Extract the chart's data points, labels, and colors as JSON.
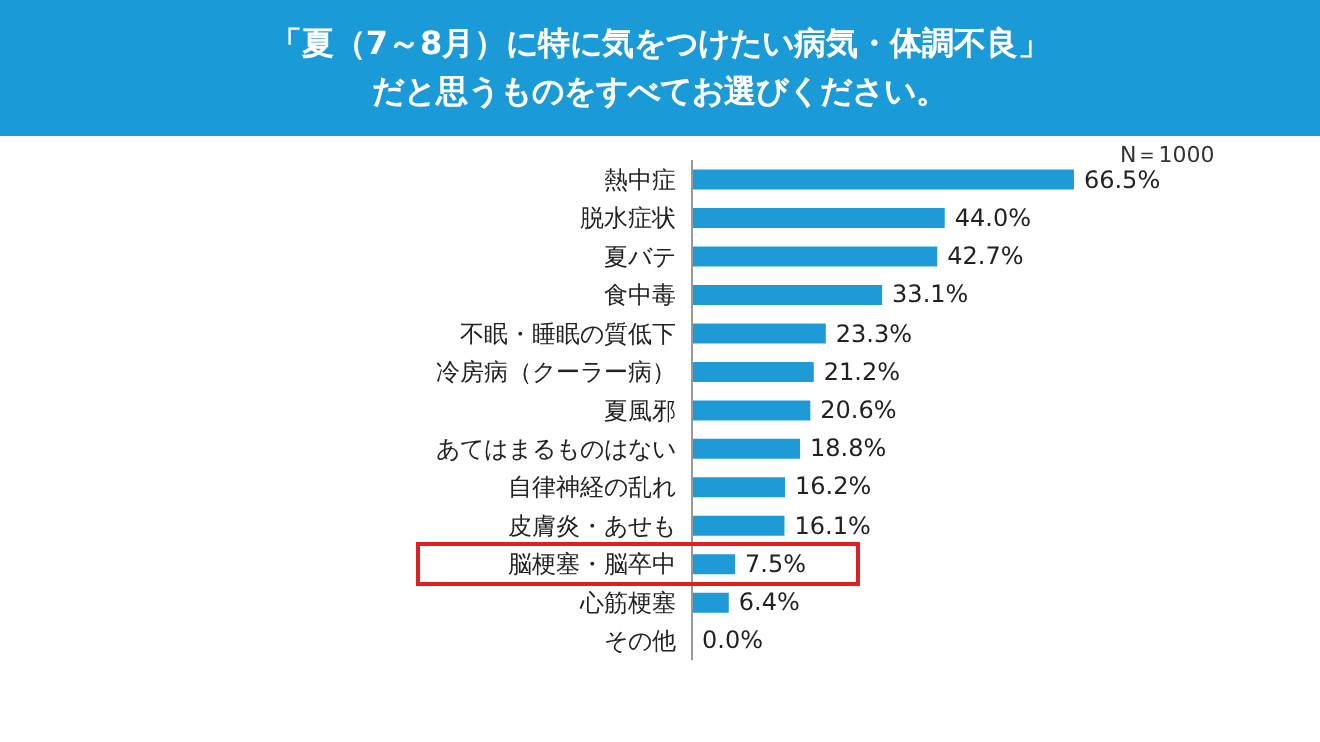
{
  "chart_data": {
    "type": "bar",
    "orientation": "horizontal",
    "title": "「夏（7～8月）に特に気をつけたい病気・体調不良」だと思うものをすべてお選びください。",
    "categories": [
      "熱中症",
      "脱水症状",
      "夏バテ",
      "食中毒",
      "不眠・睡眠の質低下",
      "冷房病（クーラー病）",
      "夏風邪",
      "あてはまるものはない",
      "自律神経の乱れ",
      "皮膚炎・あせも",
      "脳梗塞・脳卒中",
      "心筋梗塞",
      "その他"
    ],
    "values": [
      66.5,
      44.0,
      42.7,
      33.1,
      23.3,
      21.2,
      20.6,
      18.8,
      16.2,
      16.1,
      7.5,
      6.4,
      0.0
    ],
    "value_labels": [
      "66.5%",
      "44.0%",
      "42.7%",
      "33.1%",
      "23.3%",
      "21.2%",
      "20.6%",
      "18.8%",
      "16.2%",
      "16.1%",
      "7.5%",
      "6.4%",
      "0.0%"
    ],
    "color": "#1e9bd7",
    "annotations": [
      "N＝1000"
    ]
  }
}
